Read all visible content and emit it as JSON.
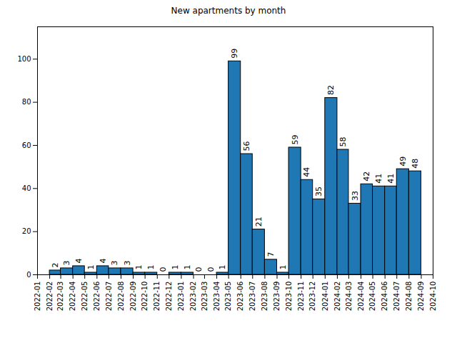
{
  "chart_data": {
    "type": "histogram",
    "title": "New apartments by month",
    "bins": [
      "2022-02",
      "2022-03",
      "2022-04",
      "2022-05",
      "2022-06",
      "2022-07",
      "2022-08",
      "2022-09",
      "2022-10",
      "2022-11",
      "2022-12",
      "2023-01",
      "2023-02",
      "2023-03",
      "2023-04",
      "2023-05",
      "2023-06",
      "2023-07",
      "2023-08",
      "2023-09",
      "2023-10",
      "2023-11",
      "2023-12",
      "2024-01",
      "2024-02",
      "2024-03",
      "2024-04",
      "2024-05",
      "2024-06",
      "2024-07",
      "2024-08",
      "2024-09"
    ],
    "counts": [
      2,
      3,
      4,
      1,
      4,
      3,
      3,
      1,
      1,
      0,
      1,
      1,
      0,
      0,
      1,
      99,
      56,
      21,
      7,
      1,
      59,
      44,
      35,
      82,
      58,
      33,
      42,
      41,
      41,
      49,
      48
    ],
    "color": "#1f77b4",
    "xlim": [
      "2022-01",
      "2024-10"
    ],
    "xticks": [
      "2022-01",
      "2022-02",
      "2022-03",
      "2022-04",
      "2022-05",
      "2022-06",
      "2022-07",
      "2022-08",
      "2022-09",
      "2022-10",
      "2022-11",
      "2022-12",
      "2023-01",
      "2023-02",
      "2023-03",
      "2023-04",
      "2023-05",
      "2023-06",
      "2023-07",
      "2023-08",
      "2023-09",
      "2023-10",
      "2023-11",
      "2023-12",
      "2024-01",
      "2024-02",
      "2024-03",
      "2024-04",
      "2024-05",
      "2024-06",
      "2024-07",
      "2024-08",
      "2024-09",
      "2024-10"
    ],
    "ylim": [
      0,
      115
    ],
    "yticks": [
      0,
      20,
      40,
      60,
      80,
      100
    ],
    "grid": false,
    "data_labels": true
  }
}
